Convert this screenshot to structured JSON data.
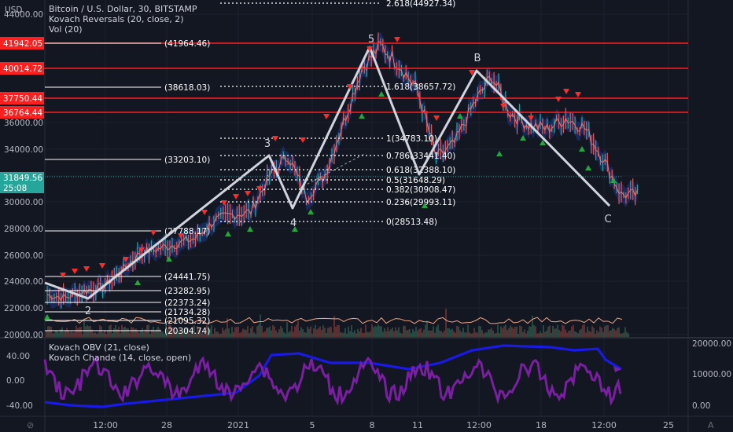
{
  "colors": {
    "bg": "#131722",
    "grid": "#1e222d",
    "text": "#d1d4dc",
    "axis_text": "#b2b5be",
    "hline": "#ff1f1f",
    "wave": "#d1d4dc",
    "band": "#1e3a8a",
    "obv": "#1a1ae6",
    "chande": "#7b1fa2",
    "up_marker": "#26a641",
    "down_marker": "#ff2a2a",
    "fib_white": "#ffffff",
    "price_tag": "#26a69a"
  },
  "legend_main": [
    "Bitcoin / U.S. Dollar, 30, BITSTAMP",
    "Kovach Reversals (20, close, 2)",
    "Vol (20)"
  ],
  "legend_sub": [
    "Kovach OBV (21, close)",
    "Kovach Chande (14, close, open)"
  ],
  "axis_currency": "USD",
  "price_tag": {
    "value": "31849.56",
    "countdown": "25:08"
  },
  "corner_labels": {
    "left": "⊘",
    "right": "A"
  },
  "chart_data": {
    "type": "line",
    "title": "Bitcoin / U.S. Dollar, 30, BITSTAMP",
    "y_ticks": [
      "44000.00",
      "36000.00",
      "34000.00",
      "32000.00",
      "30000.00",
      "28000.00",
      "26000.00",
      "24000.00",
      "22000.00",
      "20000.00"
    ],
    "ylim": [
      20000,
      44000
    ],
    "x_ticks": [
      "12:00",
      "28",
      "2021",
      "5",
      "8",
      "11",
      "12:00",
      "18",
      "12:00",
      "25"
    ],
    "red_levels": [
      "41942.05",
      "40014.72",
      "37750.44",
      "36764.44"
    ],
    "fib_levels": [
      {
        "label": "2.618(44927.34)"
      },
      {
        "label": "1.618(38657.72)"
      },
      {
        "label": "1(34783.10)"
      },
      {
        "label": "0.786(33441.40)"
      },
      {
        "label": "0.618(32388.10)"
      },
      {
        "label": "0.5(31648.29)"
      },
      {
        "label": "0.382(30908.47)"
      },
      {
        "label": "0.236(29993.11)"
      },
      {
        "label": "0(28513.48)"
      }
    ],
    "left_fib_labels": [
      "(41964.46)",
      "(38618.03)",
      "(33203.10)",
      "(27788.17)",
      "(24441.75)",
      "(23282.95)",
      "(22373.24)",
      "(21734.28)",
      "(21095.32)",
      "(20304.74)"
    ],
    "wave_labels": [
      "2",
      "3",
      "4",
      "5",
      "B",
      "C"
    ],
    "sub_ticks_left": [
      "40.00",
      "0.00",
      "-40.00"
    ],
    "sub_ticks_right": [
      "20000.00",
      "10000.00",
      "0.00"
    ],
    "series": [
      {
        "name": "Bitcoin / U.S. Dollar",
        "x": [
          "12-21",
          "12-22",
          "12-23",
          "12-24",
          "12-25",
          "12-26",
          "12-27",
          "12-28",
          "12-29",
          "12-30",
          "12-31",
          "01-01",
          "01-02",
          "01-03",
          "01-04",
          "01-05",
          "01-06",
          "01-07",
          "01-08",
          "01-09",
          "01-10",
          "01-11",
          "01-12",
          "01-13",
          "01-14",
          "01-15",
          "01-16",
          "01-17",
          "01-18",
          "01-19",
          "01-20",
          "01-21"
        ],
        "values": [
          23000,
          22800,
          23300,
          23600,
          24800,
          26200,
          26500,
          26900,
          27300,
          28600,
          29100,
          29300,
          32000,
          33600,
          30400,
          32100,
          36100,
          40200,
          41900,
          40500,
          38500,
          33400,
          34500,
          37400,
          39600,
          36800,
          35900,
          35600,
          36400,
          35700,
          33400,
          30600
        ]
      }
    ]
  }
}
